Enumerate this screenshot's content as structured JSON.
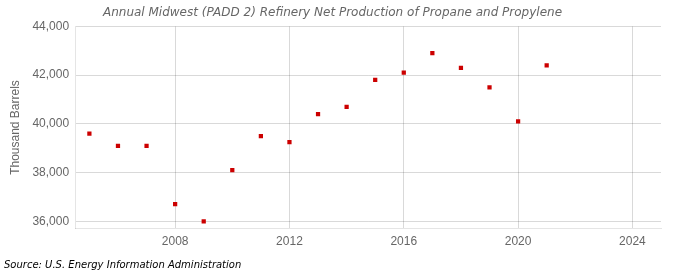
{
  "chart_data": {
    "type": "scatter",
    "title": "Annual Midwest (PADD 2) Refinery Net Production of Propane and Propylene",
    "ylabel": "Thousand Barrels",
    "source": "Source: U.S. Energy Information Administration",
    "x": [
      2005,
      2006,
      2007,
      2008,
      2009,
      2010,
      2011,
      2012,
      2013,
      2014,
      2015,
      2016,
      2017,
      2018,
      2019,
      2020,
      2021
    ],
    "values": [
      39600,
      39100,
      39100,
      36700,
      36000,
      38100,
      39500,
      39250,
      40400,
      40700,
      41800,
      42100,
      42900,
      42300,
      41500,
      40100,
      42400
    ],
    "color": "#cc0000",
    "marker": "square",
    "xlim": [
      2004.5,
      2025
    ],
    "xticks": [
      2008,
      2012,
      2016,
      2020,
      2024
    ],
    "ylim": [
      35700,
      44000
    ],
    "yticks": [
      {
        "value": 36000,
        "label": "36,000"
      },
      {
        "value": 38000,
        "label": "38,000"
      },
      {
        "value": 40000,
        "label": "40,000"
      },
      {
        "value": 42000,
        "label": "42,000"
      },
      {
        "value": 44000,
        "label": "44,000"
      }
    ],
    "grid": true
  }
}
